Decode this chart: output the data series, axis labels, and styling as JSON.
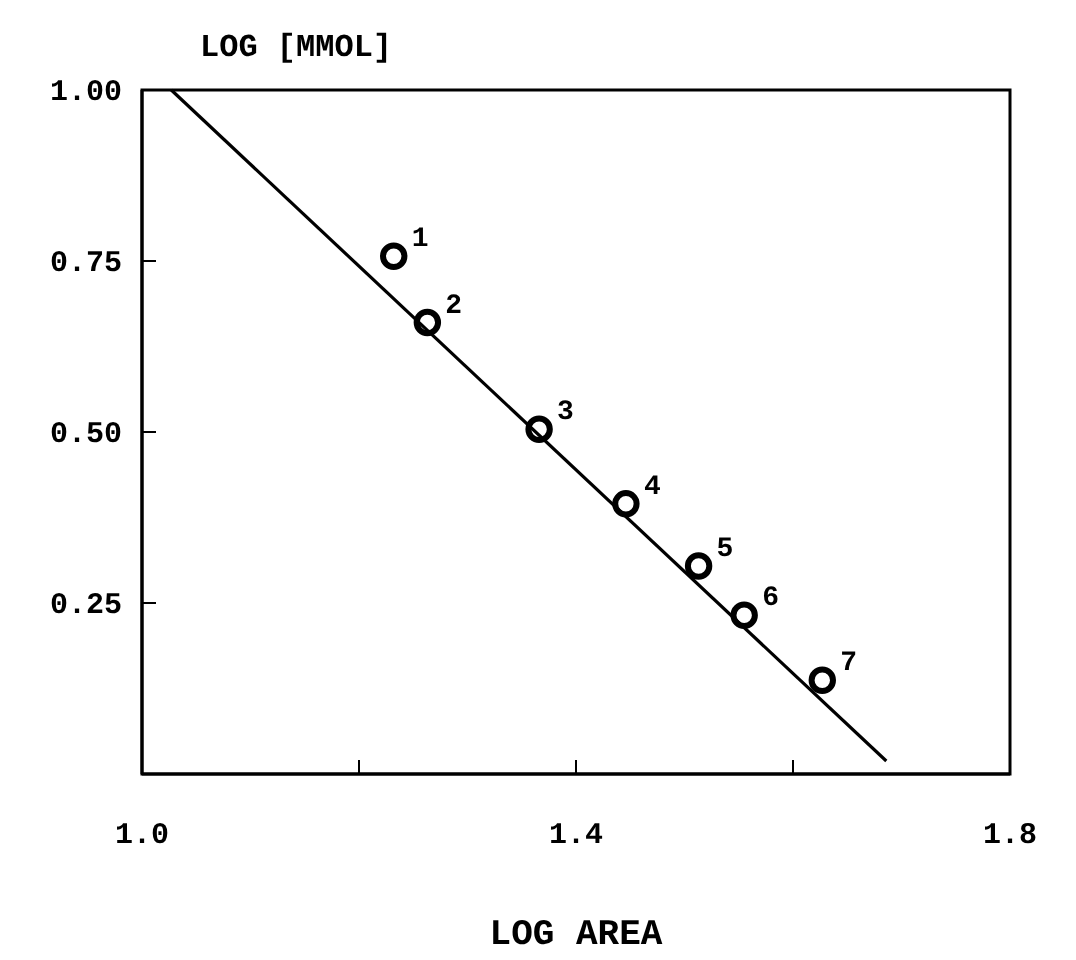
{
  "chart_data": {
    "type": "scatter",
    "xlabel": "LOG AREA",
    "ylabel": "LOG [MMOL]",
    "xlim": [
      1.0,
      1.8
    ],
    "ylim": [
      0,
      1.0
    ],
    "xticks": [
      {
        "value": 1.0,
        "label": "1.0"
      },
      {
        "value": 1.2,
        "label": null
      },
      {
        "value": 1.4,
        "label": "1.4"
      },
      {
        "value": 1.6,
        "label": null
      },
      {
        "value": 1.8,
        "label": "1.8"
      }
    ],
    "yticks": [
      {
        "value": 1.0,
        "label": "1.00"
      },
      {
        "value": 0.75,
        "label": "0.75"
      },
      {
        "value": 0.5,
        "label": "0.50"
      },
      {
        "value": 0.25,
        "label": "0.25"
      }
    ],
    "grid": false,
    "series": [
      {
        "marker": "circle",
        "color": "#000000",
        "x": [
          1.232,
          1.263,
          1.366,
          1.446,
          1.513,
          1.555,
          1.627
        ],
        "values": [
          0.757,
          0.66,
          0.504,
          0.395,
          0.304,
          0.232,
          0.137
        ]
      },
      {
        "type": "line",
        "marker": "none",
        "line_style": "solid",
        "color": "#000000",
        "x": [
          1.027,
          1.686
        ],
        "values": [
          1.0,
          0.019
        ]
      }
    ],
    "annotations": [
      {
        "text": "1",
        "x": 1.232,
        "y": 0.757
      },
      {
        "text": "2",
        "x": 1.263,
        "y": 0.66
      },
      {
        "text": "3",
        "x": 1.366,
        "y": 0.504
      },
      {
        "text": "4",
        "x": 1.446,
        "y": 0.395
      },
      {
        "text": "5",
        "x": 1.513,
        "y": 0.304
      },
      {
        "text": "6",
        "x": 1.555,
        "y": 0.232
      },
      {
        "text": "7",
        "x": 1.627,
        "y": 0.137
      }
    ]
  }
}
